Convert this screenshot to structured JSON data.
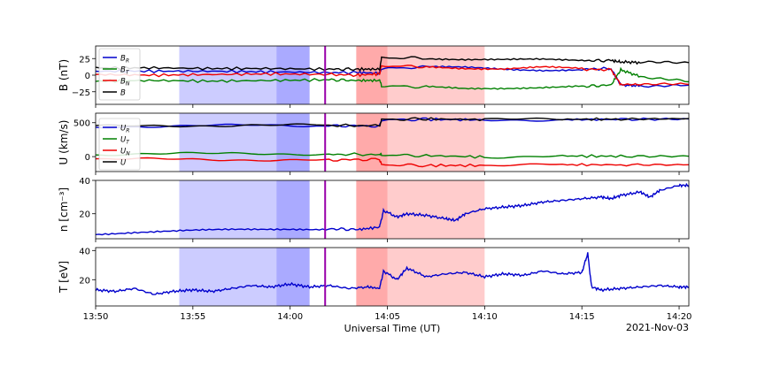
{
  "chart_data": [
    {
      "type": "line",
      "ylabel": "B (nT)",
      "xlim_min": [
        0,
        30.5
      ],
      "ylim": [
        -44,
        44
      ],
      "yticks": [
        25,
        0,
        -25
      ],
      "ytick_labels": [
        "25",
        "0",
        "−25"
      ],
      "legend_placement": "top-left",
      "series": [
        {
          "name": "B_R",
          "label_main": "B",
          "label_sub": "R",
          "color": "#0000cc",
          "x": [
            0,
            3,
            6,
            9,
            12,
            13.5,
            14.6,
            14.7,
            17,
            19,
            21,
            23,
            25,
            26.5,
            27,
            28,
            30.5
          ],
          "y": [
            6,
            6,
            6,
            5,
            4,
            4,
            3,
            10,
            12,
            11,
            9,
            8,
            9,
            10,
            -15,
            -16,
            -15
          ]
        },
        {
          "name": "B_T",
          "label_main": "B",
          "label_sub": "T",
          "color": "#008000",
          "x": [
            0,
            3,
            6,
            9,
            12,
            13.5,
            14.6,
            14.7,
            17,
            19,
            21,
            23,
            25,
            26.5,
            27,
            28,
            30.5
          ],
          "y": [
            -9,
            -8,
            -9,
            -8,
            -7,
            -8,
            -8,
            -16,
            -18,
            -20,
            -19,
            -18,
            -17,
            -15,
            8,
            -2,
            -10
          ]
        },
        {
          "name": "B_N",
          "label_main": "B",
          "label_sub": "N",
          "color": "#ee0000",
          "x": [
            0,
            3,
            6,
            9,
            12,
            13.5,
            14.6,
            14.7,
            17,
            19,
            21,
            23,
            25,
            26.5,
            27,
            28,
            30.5
          ],
          "y": [
            1,
            0,
            1,
            2,
            1,
            0,
            2,
            14,
            13,
            11,
            10,
            12,
            9,
            8,
            -14,
            -14,
            -14
          ]
        },
        {
          "name": "B",
          "label_main": "B",
          "label_sub": "",
          "color": "#000000",
          "x": [
            0,
            3,
            6,
            9,
            12,
            13.5,
            14.6,
            14.7,
            17,
            19,
            21,
            23,
            25,
            26.5,
            27,
            28,
            30.5
          ],
          "y": [
            11,
            11,
            10,
            10,
            9,
            9,
            9,
            26,
            26,
            24,
            23,
            23,
            22,
            22,
            20,
            19,
            19
          ]
        }
      ]
    },
    {
      "type": "line",
      "ylabel": "U (km/s)",
      "xlim_min": [
        0,
        30.5
      ],
      "ylim": [
        -220,
        640
      ],
      "yticks": [
        500,
        0
      ],
      "ytick_labels": [
        "500",
        "0"
      ],
      "legend_placement": "bottom-left",
      "series": [
        {
          "name": "U_R",
          "label_main": "U",
          "label_sub": "R",
          "color": "#0000cc",
          "x": [
            0,
            4,
            8,
            12,
            14.6,
            14.7,
            17,
            20,
            24,
            27,
            30.5
          ],
          "y": [
            440,
            450,
            460,
            455,
            450,
            540,
            550,
            540,
            545,
            548,
            555
          ]
        },
        {
          "name": "U_T",
          "label_main": "U",
          "label_sub": "T",
          "color": "#008000",
          "x": [
            0,
            4,
            8,
            12,
            14.6,
            14.7,
            17,
            20,
            24,
            27,
            30.5
          ],
          "y": [
            30,
            40,
            50,
            35,
            30,
            25,
            15,
            -5,
            10,
            5,
            5
          ]
        },
        {
          "name": "U_N",
          "label_main": "U",
          "label_sub": "N",
          "color": "#ee0000",
          "x": [
            0,
            4,
            8,
            12,
            14.6,
            14.7,
            17,
            20,
            24,
            27,
            30.5
          ],
          "y": [
            -40,
            -40,
            -45,
            -50,
            -40,
            -120,
            -130,
            -130,
            -120,
            -120,
            -120
          ]
        },
        {
          "name": "U",
          "label_main": "U",
          "label_sub": "",
          "color": "#000000",
          "x": [
            0,
            4,
            8,
            12,
            14.6,
            14.7,
            17,
            20,
            24,
            27,
            30.5
          ],
          "y": [
            445,
            455,
            465,
            460,
            455,
            545,
            555,
            545,
            550,
            552,
            560
          ]
        }
      ]
    },
    {
      "type": "line",
      "ylabel": "n [cm⁻³]",
      "xlim_min": [
        0,
        30.5
      ],
      "ylim": [
        5,
        40
      ],
      "yticks": [
        40,
        20
      ],
      "ytick_labels": [
        "40",
        "20"
      ],
      "series": [
        {
          "name": "n",
          "color": "#0000cc",
          "x": [
            0,
            2,
            4,
            6,
            8,
            10,
            12,
            13.5,
            14.6,
            14.8,
            15.5,
            16,
            17,
            18,
            18.5,
            19,
            20,
            21,
            22,
            23,
            24,
            25,
            26,
            26.5,
            27,
            28,
            28.5,
            29,
            30,
            30.5
          ],
          "y": [
            8,
            9,
            9.5,
            10,
            10.5,
            11,
            11,
            10.5,
            12,
            22,
            18,
            20,
            19,
            17,
            16,
            20,
            23,
            24,
            25,
            27,
            28,
            29,
            30,
            29,
            31,
            33,
            30,
            34,
            37,
            37
          ]
        }
      ]
    },
    {
      "type": "line",
      "ylabel": "T [eV]",
      "xlim_min": [
        0,
        30.5
      ],
      "ylim": [
        2,
        42
      ],
      "yticks": [
        40,
        20
      ],
      "ytick_labels": [
        "40",
        "20"
      ],
      "xticks": [
        0,
        5,
        10,
        15,
        20,
        25,
        30
      ],
      "xtick_labels": [
        "13:50",
        "13:55",
        "14:00",
        "14:05",
        "14:10",
        "14:15",
        "14:20"
      ],
      "xlabel": "Universal Time (UT)",
      "date_label": "2021-Nov-03",
      "series": [
        {
          "name": "T",
          "color": "#0000cc",
          "x": [
            0,
            1,
            2,
            3,
            4,
            5,
            6,
            7,
            8,
            9,
            10,
            11,
            12,
            13,
            14,
            14.6,
            14.8,
            15.5,
            16,
            17,
            18,
            19,
            20,
            21,
            22,
            23,
            24,
            25,
            25.3,
            25.5,
            26,
            27,
            28,
            29,
            30,
            30.5
          ],
          "y": [
            13,
            12,
            14,
            10,
            12,
            13,
            12,
            14,
            16,
            15,
            17,
            15,
            16,
            14,
            15,
            14,
            26,
            20,
            28,
            22,
            24,
            25,
            22,
            24,
            23,
            26,
            24,
            25,
            38,
            15,
            13,
            14,
            15,
            16,
            15,
            15
          ]
        }
      ]
    }
  ],
  "shading": [
    {
      "x0": 4.3,
      "x1": 9.3,
      "color": "#aaaaff",
      "opacity": 0.6
    },
    {
      "x0": 9.3,
      "x1": 11.0,
      "color": "#5555ff",
      "opacity": 0.5
    },
    {
      "x0": 13.4,
      "x1": 15.0,
      "color": "#ff5555",
      "opacity": 0.5
    },
    {
      "x0": 15.0,
      "x1": 20.0,
      "color": "#ffaaaa",
      "opacity": 0.6
    }
  ],
  "event_line": {
    "x": 11.8,
    "color": "#9900aa"
  }
}
